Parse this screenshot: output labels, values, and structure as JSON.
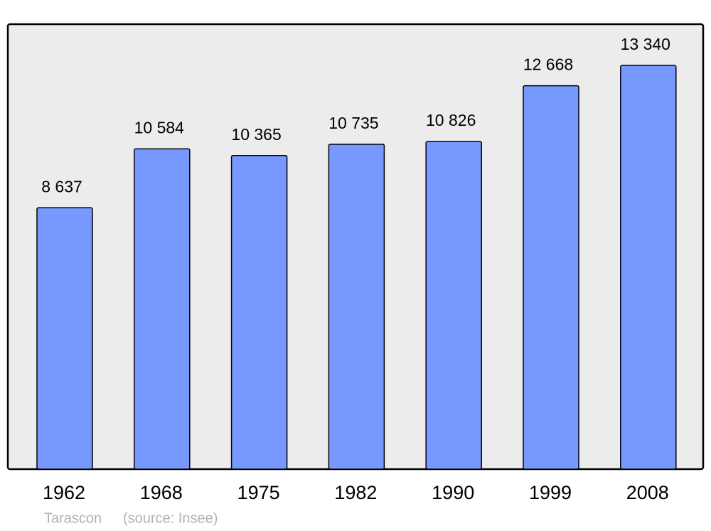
{
  "chart_data": {
    "type": "bar",
    "categories": [
      "1962",
      "1968",
      "1975",
      "1982",
      "1990",
      "1999",
      "2008"
    ],
    "values": [
      8637,
      10584,
      10365,
      10735,
      10826,
      12668,
      13340
    ],
    "value_labels": [
      "8 637",
      "10 584",
      "10 365",
      "10 735",
      "10 826",
      "12 668",
      "13 340"
    ],
    "color": "#7799ff",
    "ylim": [
      0,
      14680
    ],
    "place": "Tarascon",
    "source": "(source: Insee)"
  }
}
